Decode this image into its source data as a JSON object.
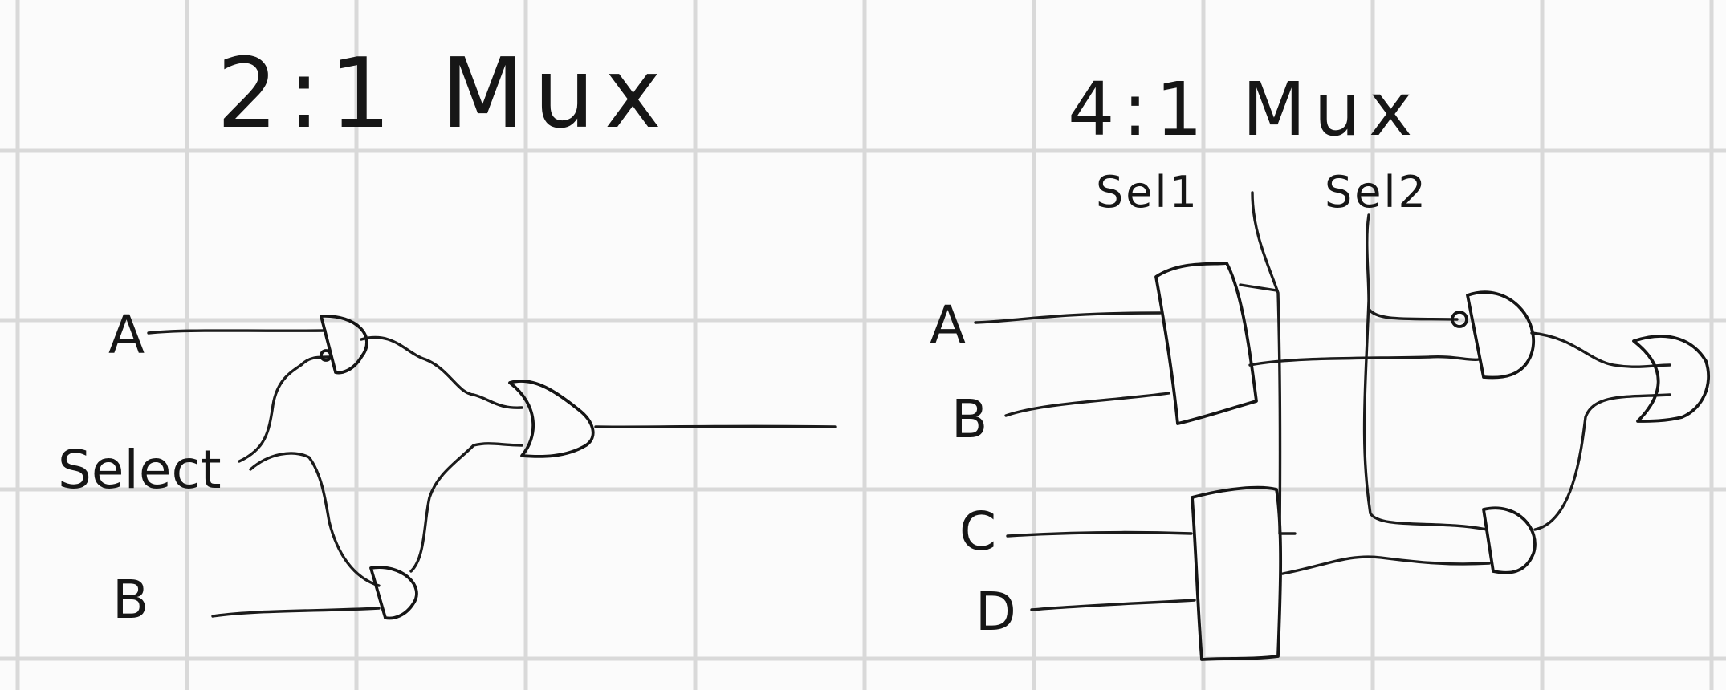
{
  "left_circuit": {
    "title": "2:1 Mux",
    "inputs": {
      "a": "A",
      "select": "Select",
      "b": "B"
    }
  },
  "right_circuit": {
    "title": "4:1 Mux",
    "selects": {
      "sel1": "Sel1",
      "sel2": "Sel2"
    },
    "inputs": {
      "a": "A",
      "b": "B",
      "c": "C",
      "d": "D"
    }
  },
  "style": {
    "ink": "#161616",
    "grid": "#d9d9d9",
    "paper": "#fbfbfb"
  }
}
